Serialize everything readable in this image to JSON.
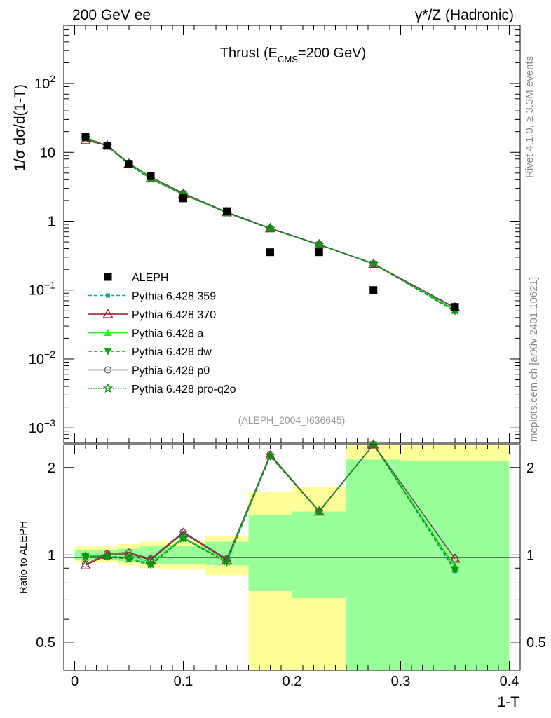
{
  "header": {
    "left_label": "200 GeV ee",
    "right_label": "γ*/Z (Hadronic)"
  },
  "side_labels": {
    "rivet": "Rivet 4.1.0, ≥ 3.3M events",
    "mcplots": "mcplots.cern.ch [arXiv:2401.10621]"
  },
  "chart_data": [
    {
      "type": "line",
      "name": "main",
      "title": "Thrust (E_CMS=200 GeV)",
      "title_parts": {
        "before": "Thrust (E",
        "sub": "CMS",
        "after": "=200 GeV)"
      },
      "watermark": "(ALEPH_2004_I636645)",
      "xlabel": "1-T",
      "ylabel": "1/σ  dσ/d(1-T)",
      "yscale": "log",
      "xlim": [
        -0.01,
        0.41
      ],
      "ylim": [
        0.0006,
        700
      ],
      "ytick_labels": [
        {
          "value": 0.001,
          "base": "10",
          "exp": "−3"
        },
        {
          "value": 0.01,
          "base": "10",
          "exp": "−2"
        },
        {
          "value": 0.1,
          "base": "10",
          "exp": "−1"
        },
        {
          "value": 1,
          "base": "1",
          "exp": ""
        },
        {
          "value": 10,
          "base": "10",
          "exp": ""
        },
        {
          "value": 100,
          "base": "10",
          "exp": "2"
        }
      ],
      "data": {
        "name": "ALEPH",
        "x": [
          0.01,
          0.03,
          0.05,
          0.07,
          0.1,
          0.14,
          0.18,
          0.225,
          0.275,
          0.35
        ],
        "y": [
          16.8,
          12.5,
          6.8,
          4.5,
          2.15,
          1.4,
          0.355,
          0.355,
          0.1,
          0.057
        ]
      },
      "series": [
        {
          "name": "Pythia 6.428 359",
          "color": "#00b28a",
          "dash": "5,3",
          "marker": "square-small",
          "x": [
            0.01,
            0.03,
            0.05,
            0.07,
            0.1,
            0.14,
            0.18,
            0.225,
            0.275,
            0.35
          ],
          "y": [
            15.5,
            12.4,
            6.7,
            4.1,
            2.45,
            1.33,
            0.78,
            0.455,
            0.24,
            0.05
          ]
        },
        {
          "name": "Pythia 6.428 370",
          "color": "#9b1a2e",
          "dash": "",
          "marker": "triangle-open",
          "x": [
            0.01,
            0.03,
            0.05,
            0.07,
            0.1,
            0.14,
            0.18,
            0.225,
            0.275,
            0.35
          ],
          "y": [
            15.0,
            12.6,
            6.85,
            4.2,
            2.5,
            1.35,
            0.79,
            0.46,
            0.24,
            0.056
          ]
        },
        {
          "name": "Pythia 6.428 a",
          "color": "#2ee62e",
          "dash": "",
          "marker": "triangle",
          "x": [
            0.01,
            0.03,
            0.05,
            0.07,
            0.1,
            0.14,
            0.18,
            0.225,
            0.275,
            0.35
          ],
          "y": [
            16.5,
            12.5,
            6.85,
            4.2,
            2.45,
            1.34,
            0.785,
            0.46,
            0.245,
            0.052
          ]
        },
        {
          "name": "Pythia 6.428 dw",
          "color": "#13a313",
          "dash": "5,3",
          "marker": "triangle-down",
          "x": [
            0.01,
            0.03,
            0.05,
            0.07,
            0.1,
            0.14,
            0.18,
            0.225,
            0.275,
            0.35
          ],
          "y": [
            16.7,
            12.3,
            6.6,
            4.1,
            2.45,
            1.32,
            0.775,
            0.455,
            0.24,
            0.049
          ]
        },
        {
          "name": "Pythia 6.428 p0",
          "color": "#555555",
          "dash": "",
          "marker": "circle-open",
          "x": [
            0.01,
            0.03,
            0.05,
            0.07,
            0.1,
            0.14,
            0.18,
            0.225,
            0.275,
            0.35
          ],
          "y": [
            15.6,
            12.6,
            6.95,
            4.4,
            2.55,
            1.36,
            0.79,
            0.46,
            0.24,
            0.055
          ]
        },
        {
          "name": "Pythia 6.428 pro-q2o",
          "color": "#0b8a0b",
          "dash": "1.5,2",
          "marker": "star-open",
          "x": [
            0.01,
            0.03,
            0.05,
            0.07,
            0.1,
            0.14,
            0.18,
            0.225,
            0.275,
            0.35
          ],
          "y": [
            16.0,
            12.4,
            6.7,
            4.15,
            2.45,
            1.33,
            0.78,
            0.455,
            0.24,
            0.051
          ]
        }
      ]
    },
    {
      "type": "line",
      "name": "ratio",
      "ylabel": "Ratio to ALEPH",
      "xlabel": "1-T",
      "yscale": "log",
      "xlim": [
        -0.01,
        0.41
      ],
      "ylim": [
        0.4,
        2.4
      ],
      "xtick_labels": [
        "0",
        "0.1",
        "0.2",
        "0.3",
        "0.4"
      ],
      "xtick_values": [
        0,
        0.1,
        0.2,
        0.3,
        0.4
      ],
      "ytick_labels": [
        "0.5",
        "1",
        "2"
      ],
      "ytick_values": [
        0.5,
        1,
        2
      ],
      "bands": {
        "edges": [
          0,
          0.02,
          0.04,
          0.06,
          0.08,
          0.12,
          0.16,
          0.2,
          0.25,
          0.3,
          0.4
        ],
        "yellow_lo": [
          0.94,
          0.94,
          0.92,
          0.9,
          0.89,
          0.85,
          0.37,
          0.35,
          0.35,
          0.35
        ],
        "yellow_hi": [
          1.07,
          1.07,
          1.09,
          1.11,
          1.12,
          1.16,
          1.65,
          1.72,
          2.45,
          2.45
        ],
        "green_lo": [
          0.96,
          0.96,
          0.95,
          0.93,
          0.93,
          0.92,
          0.75,
          0.71,
          0.35,
          0.35
        ],
        "green_hi": [
          1.04,
          1.04,
          1.05,
          1.07,
          1.07,
          1.11,
          1.37,
          1.41,
          2.13,
          2.1
        ]
      },
      "series": [
        {
          "name": "Pythia 6.428 359",
          "color": "#00b28a",
          "dash": "5,3",
          "marker": "square-small",
          "y": [
            0.99,
            0.99,
            0.98,
            0.93,
            1.14,
            0.95,
            2.2,
            1.41,
            2.4,
            0.88
          ]
        },
        {
          "name": "Pythia 6.428 370",
          "color": "#9b1a2e",
          "dash": "",
          "marker": "triangle-open",
          "y": [
            0.92,
            1.0,
            1.01,
            0.96,
            1.19,
            0.96,
            2.2,
            1.41,
            2.4,
            0.97
          ]
        },
        {
          "name": "Pythia 6.428 a",
          "color": "#2ee62e",
          "dash": "",
          "marker": "triangle",
          "y": [
            0.98,
            1.0,
            1.0,
            0.94,
            1.15,
            0.95,
            2.2,
            1.42,
            2.42,
            0.91
          ]
        },
        {
          "name": "Pythia 6.428 dw",
          "color": "#13a313",
          "dash": "5,3",
          "marker": "triangle-down",
          "y": [
            0.99,
            0.98,
            0.97,
            0.92,
            1.14,
            0.94,
            2.18,
            1.41,
            2.4,
            0.89
          ]
        },
        {
          "name": "Pythia 6.428 p0",
          "color": "#555555",
          "dash": "",
          "marker": "circle-open",
          "y": [
            0.93,
            1.01,
            1.02,
            0.97,
            1.2,
            0.97,
            2.22,
            1.41,
            2.42,
            0.97
          ]
        },
        {
          "name": "Pythia 6.428 pro-q2o",
          "color": "#0b8a0b",
          "dash": "1.5,2",
          "marker": "star-open",
          "y": [
            0.99,
            0.99,
            0.97,
            0.93,
            1.14,
            0.95,
            2.2,
            1.41,
            2.4,
            0.9
          ]
        }
      ]
    }
  ]
}
